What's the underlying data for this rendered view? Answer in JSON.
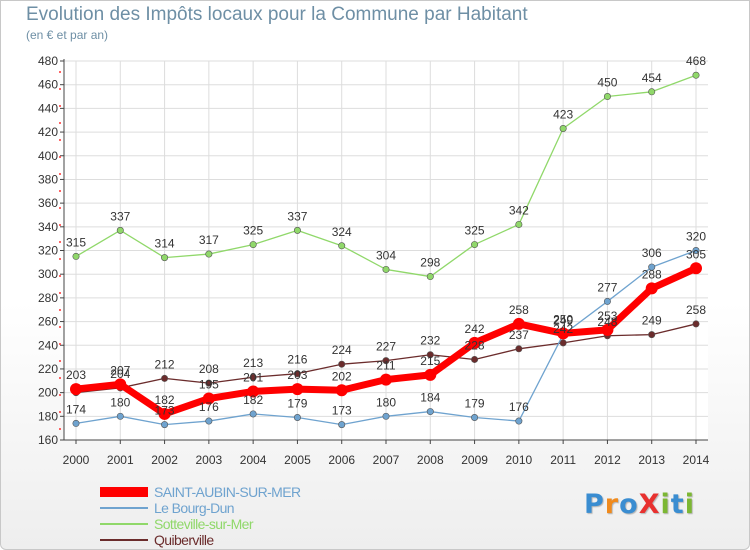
{
  "header": {
    "title": "Evolution des Impôts locaux pour la Commune par Habitant",
    "subtitle": "(en € et par an)"
  },
  "chart_data": {
    "type": "line",
    "x": [
      2000,
      2001,
      2002,
      2003,
      2004,
      2005,
      2006,
      2007,
      2008,
      2009,
      2010,
      2011,
      2012,
      2013,
      2014
    ],
    "ylim": [
      160,
      480
    ],
    "yticks": [
      160,
      180,
      200,
      220,
      240,
      260,
      280,
      300,
      320,
      340,
      360,
      380,
      400,
      420,
      440,
      460,
      480
    ],
    "grid": true,
    "legend_position": "bottom-left",
    "series": [
      {
        "name": "SAINT-AUBIN-SUR-MER",
        "color": "#ff0000",
        "values": [
          203,
          207,
          182,
          195,
          201,
          203,
          202,
          211,
          215,
          242,
          258,
          250,
          253,
          288,
          305
        ],
        "labels": [
          "203",
          "207",
          "182",
          "195",
          "201",
          "203",
          "202",
          "211",
          "215",
          "242",
          "258",
          "250",
          "253",
          "288",
          "305"
        ]
      },
      {
        "name": "Le Bourg-Dun",
        "color": "#6fa3cf",
        "values": [
          174,
          180,
          173,
          176,
          182,
          179,
          173,
          180,
          184,
          179,
          176,
          249,
          277,
          306,
          320
        ],
        "labels": [
          "174",
          "180",
          "173",
          "176",
          "182",
          "179",
          "173",
          "180",
          "184",
          "179",
          "176",
          "249",
          "277",
          "306",
          "320"
        ]
      },
      {
        "name": "Sotteville-sur-Mer",
        "color": "#90d86a",
        "values": [
          315,
          337,
          314,
          317,
          325,
          337,
          324,
          304,
          298,
          325,
          342,
          423,
          450,
          454,
          468
        ],
        "labels": [
          "315",
          "337",
          "314",
          "317",
          "325",
          "337",
          "324",
          "304",
          "298",
          "325",
          "342",
          "423",
          "450",
          "454",
          "468"
        ]
      },
      {
        "name": "Quiberville",
        "color": "#6b2c2c",
        "values": [
          200,
          204,
          212,
          208,
          213,
          216,
          224,
          227,
          232,
          228,
          237,
          242,
          248,
          249,
          258
        ],
        "labels": [
          "",
          "204",
          "212",
          "208",
          "213",
          "216",
          "224",
          "227",
          "232",
          "228",
          "237",
          "242",
          "248",
          "249",
          "258"
        ]
      }
    ]
  },
  "logo": {
    "text": "ProXiti"
  }
}
